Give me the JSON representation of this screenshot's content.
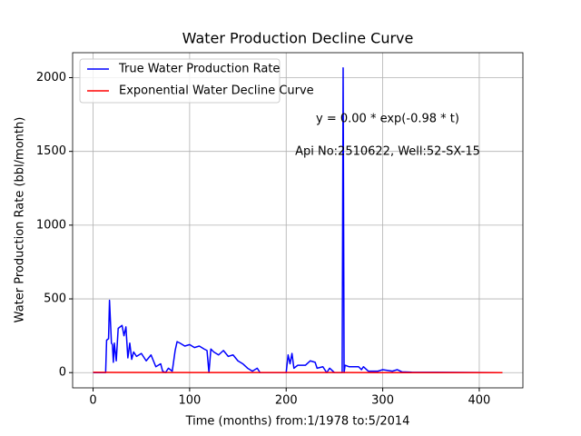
{
  "chart_data": {
    "type": "line",
    "title": "Water Production Decline Curve",
    "xlabel": "Time (months) from:1/1978 to:5/2014",
    "ylabel": "Water Production Rate (bbl/month)",
    "annotations": [
      "y = 0.00 * exp(-0.98 * t)",
      "Api No:2510622, Well:52-SX-15"
    ],
    "xlim": [
      -21.2,
      445.2
    ],
    "ylim": [
      -103.3,
      2169.3
    ],
    "xticks": [
      0,
      100,
      200,
      300,
      400
    ],
    "yticks": [
      0,
      500,
      1000,
      1500,
      2000
    ],
    "grid": true,
    "legend": "upper left",
    "series": [
      {
        "name": "True Water Production Rate",
        "color": "#0000ff",
        "x": [
          0,
          13,
          14,
          16,
          17,
          19,
          20,
          21,
          22,
          24,
          26,
          30,
          32,
          34,
          36,
          38,
          40,
          42,
          45,
          50,
          55,
          60,
          65,
          70,
          72,
          75,
          78,
          82,
          85,
          87,
          90,
          95,
          100,
          105,
          110,
          115,
          118,
          120,
          122,
          125,
          130,
          135,
          140,
          145,
          150,
          155,
          160,
          165,
          170,
          173,
          200,
          202,
          204,
          206,
          208,
          212,
          220,
          225,
          230,
          232,
          238,
          242,
          245,
          250,
          256,
          258,
          259,
          260,
          261,
          265,
          275,
          278,
          280,
          285,
          295,
          300,
          310,
          315,
          320,
          330,
          424
        ],
        "values": [
          0,
          0,
          220,
          230,
          490,
          200,
          190,
          70,
          200,
          80,
          300,
          320,
          250,
          310,
          100,
          200,
          90,
          140,
          110,
          130,
          80,
          120,
          40,
          60,
          10,
          0,
          30,
          10,
          150,
          210,
          200,
          180,
          190,
          170,
          180,
          160,
          150,
          0,
          160,
          140,
          120,
          150,
          110,
          120,
          80,
          60,
          30,
          10,
          30,
          0,
          0,
          120,
          60,
          130,
          30,
          50,
          50,
          80,
          70,
          30,
          40,
          0,
          30,
          0,
          0,
          0,
          2066,
          0,
          50,
          40,
          40,
          20,
          40,
          10,
          10,
          20,
          10,
          20,
          5,
          3,
          0
        ]
      },
      {
        "name": "Exponential Water Decline Curve",
        "color": "#ff0000",
        "x": [
          0,
          100,
          200,
          300,
          424
        ],
        "values": [
          2,
          1,
          1,
          0,
          0
        ]
      }
    ]
  }
}
